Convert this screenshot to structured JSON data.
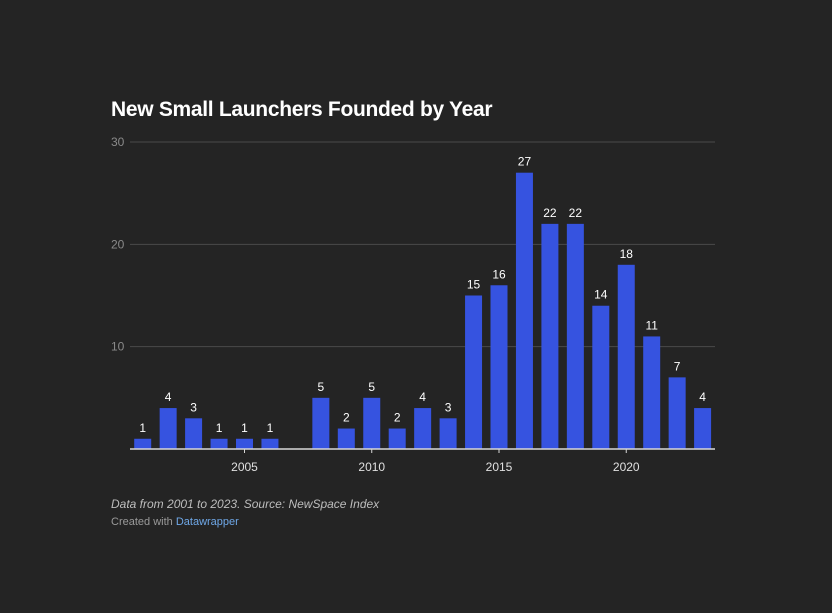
{
  "chart_data": {
    "type": "bar",
    "title": "New Small Launchers Founded by Year",
    "x": [
      2001,
      2002,
      2003,
      2004,
      2005,
      2006,
      2007,
      2008,
      2009,
      2010,
      2011,
      2012,
      2013,
      2014,
      2015,
      2016,
      2017,
      2018,
      2019,
      2020,
      2021,
      2022,
      2023
    ],
    "values": [
      1,
      4,
      3,
      1,
      1,
      1,
      0,
      5,
      2,
      5,
      2,
      4,
      3,
      15,
      16,
      27,
      22,
      22,
      14,
      18,
      11,
      7,
      4
    ],
    "data_labels": [
      "1",
      "4",
      "3",
      "1",
      "1",
      "1",
      "",
      "5",
      "2",
      "5",
      "2",
      "4",
      "3",
      "15",
      "16",
      "27",
      "22",
      "22",
      "14",
      "18",
      "11",
      "7",
      "4"
    ],
    "xticks": [
      2005,
      2010,
      2015,
      2020
    ],
    "yticks": [
      10,
      20,
      30
    ],
    "ylim": [
      0,
      30
    ],
    "grid": true,
    "xlabel": "",
    "ylabel": "",
    "colors": {
      "bar": "#3653e0",
      "background": "#242424",
      "grid": "#4a4a4a",
      "text": "#ffffff",
      "tick_text": "#8a8a8a"
    }
  },
  "footer": {
    "note": "Data from 2001 to 2023. Source: NewSpace Index",
    "credit_prefix": "Created with",
    "credit_link": "Datawrapper"
  }
}
